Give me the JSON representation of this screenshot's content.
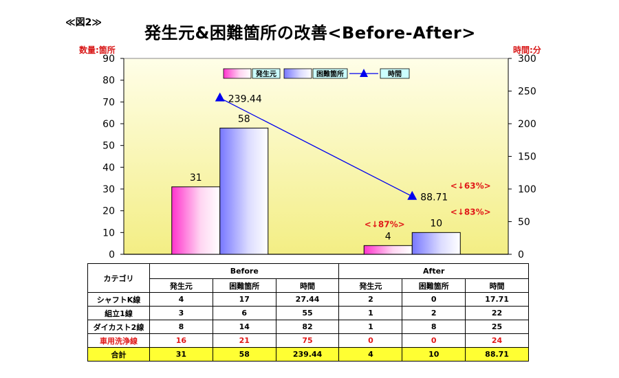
{
  "figure_label": "≪図2≫",
  "title": "発生元&困難箇所の改善<Before-After>",
  "chart_data": {
    "type": "bar",
    "categories": [
      "Before",
      "After"
    ],
    "series": [
      {
        "name": "発生元",
        "type": "bar",
        "axis": "left",
        "values": [
          31,
          4
        ],
        "color_from": "#ff33cc",
        "color_to": "#ffffff"
      },
      {
        "name": "困難箇所",
        "type": "bar",
        "axis": "left",
        "values": [
          58,
          10
        ],
        "color_from": "#6666ff",
        "color_to": "#ffffff"
      },
      {
        "name": "時間",
        "type": "line",
        "axis": "right",
        "values": [
          239.44,
          88.71
        ],
        "color": "#0000ee"
      }
    ],
    "data_labels": {
      "発生元": [
        "31",
        "4"
      ],
      "困難箇所": [
        "58",
        "10"
      ],
      "時間": [
        "239.44",
        "88.71"
      ]
    },
    "ylabel": "数量:箇所",
    "y2label": "時間:分",
    "ylim": [
      0,
      90
    ],
    "yticks": [
      0,
      10,
      20,
      30,
      40,
      50,
      60,
      70,
      80,
      90
    ],
    "y2lim": [
      0,
      300
    ],
    "y2ticks": [
      0,
      50,
      100,
      150,
      200,
      250,
      300
    ],
    "legend_position": "top-center",
    "grid": false,
    "plot_background": [
      "#fffde6",
      "#f4f08a"
    ],
    "annotations": [
      {
        "text": "<↓87%>",
        "near": "発生元 After",
        "color": "#e01818"
      },
      {
        "text": "<↓83%>",
        "near": "困難箇所 After",
        "color": "#e01818"
      },
      {
        "text": "<↓63%>",
        "near": "時間 After",
        "color": "#e01818"
      }
    ]
  },
  "table": {
    "corner": "カテゴリ",
    "groups": [
      "Before",
      "After"
    ],
    "subheaders": [
      "発生元",
      "困難箇所",
      "時間",
      "発生元",
      "困難箇所",
      "時間"
    ],
    "rows": [
      {
        "label": "シャフトK線",
        "values": [
          "4",
          "17",
          "27.44",
          "2",
          "0",
          "17.71"
        ]
      },
      {
        "label": "組立1線",
        "values": [
          "3",
          "6",
          "55",
          "1",
          "2",
          "22"
        ]
      },
      {
        "label": "ダイカスト2線",
        "values": [
          "8",
          "14",
          "82",
          "1",
          "8",
          "25"
        ]
      },
      {
        "label": "車用洗浄線",
        "values": [
          "16",
          "21",
          "75",
          "0",
          "0",
          "24"
        ]
      },
      {
        "label": "合計",
        "values": [
          "31",
          "58",
          "239.44",
          "4",
          "10",
          "88.71"
        ]
      }
    ]
  }
}
